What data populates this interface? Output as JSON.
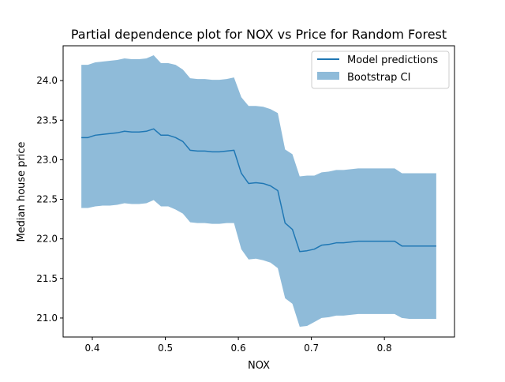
{
  "chart_data": {
    "type": "line",
    "title": "Partial dependence plot for NOX vs Price for Random Forest",
    "xlabel": "NOX",
    "ylabel": "Median house price",
    "xlim": [
      0.36,
      0.896
    ],
    "ylim": [
      20.76,
      24.44
    ],
    "x_ticks": [
      0.4,
      0.5,
      0.6,
      0.7,
      0.8
    ],
    "x_tick_labels": [
      "0.4",
      "0.5",
      "0.6",
      "0.7",
      "0.8"
    ],
    "y_ticks": [
      21.0,
      21.5,
      22.0,
      22.5,
      23.0,
      23.5,
      24.0
    ],
    "y_tick_labels": [
      "21.0",
      "21.5",
      "22.0",
      "22.5",
      "23.0",
      "23.5",
      "24.0"
    ],
    "grid": false,
    "legend_position": "upper right",
    "colors": {
      "line": "#1f77b4",
      "band": "#1f77b4",
      "band_alpha": 0.5
    },
    "x": [
      0.385,
      0.394,
      0.404,
      0.414,
      0.424,
      0.434,
      0.444,
      0.454,
      0.464,
      0.474,
      0.484,
      0.494,
      0.504,
      0.514,
      0.524,
      0.534,
      0.544,
      0.554,
      0.564,
      0.574,
      0.584,
      0.594,
      0.604,
      0.614,
      0.624,
      0.634,
      0.644,
      0.654,
      0.664,
      0.674,
      0.684,
      0.694,
      0.704,
      0.714,
      0.724,
      0.734,
      0.744,
      0.754,
      0.764,
      0.774,
      0.784,
      0.794,
      0.804,
      0.814,
      0.824,
      0.834,
      0.844,
      0.854,
      0.864,
      0.871
    ],
    "series": [
      {
        "name": "Model predictions",
        "values": [
          23.28,
          23.28,
          23.31,
          23.32,
          23.33,
          23.34,
          23.36,
          23.35,
          23.35,
          23.36,
          23.39,
          23.31,
          23.31,
          23.28,
          23.23,
          23.12,
          23.11,
          23.11,
          23.1,
          23.1,
          23.11,
          23.12,
          22.83,
          22.7,
          22.71,
          22.7,
          22.67,
          22.61,
          22.2,
          22.12,
          21.84,
          21.85,
          21.87,
          21.92,
          21.93,
          21.95,
          21.95,
          21.96,
          21.97,
          21.97,
          21.97,
          21.97,
          21.97,
          21.97,
          21.91,
          21.91,
          21.91,
          21.91,
          21.91,
          21.91
        ]
      },
      {
        "name": "Bootstrap CI",
        "lower": [
          22.39,
          22.39,
          22.41,
          22.42,
          22.42,
          22.43,
          22.45,
          22.44,
          22.44,
          22.45,
          22.49,
          22.41,
          22.41,
          22.37,
          22.32,
          22.21,
          22.2,
          22.2,
          22.19,
          22.19,
          22.2,
          22.2,
          21.87,
          21.74,
          21.75,
          21.73,
          21.7,
          21.63,
          21.25,
          21.18,
          20.89,
          20.9,
          20.95,
          21.0,
          21.01,
          21.03,
          21.03,
          21.04,
          21.05,
          21.05,
          21.05,
          21.05,
          21.05,
          21.05,
          21.0,
          20.99,
          20.99,
          20.99,
          20.99,
          20.99
        ],
        "upper": [
          24.2,
          24.2,
          24.23,
          24.24,
          24.25,
          24.26,
          24.28,
          24.27,
          24.27,
          24.28,
          24.32,
          24.22,
          24.22,
          24.2,
          24.14,
          24.03,
          24.02,
          24.02,
          24.01,
          24.01,
          24.02,
          24.04,
          23.79,
          23.68,
          23.68,
          23.67,
          23.64,
          23.59,
          23.13,
          23.07,
          22.79,
          22.8,
          22.8,
          22.84,
          22.85,
          22.87,
          22.87,
          22.88,
          22.89,
          22.89,
          22.89,
          22.89,
          22.89,
          22.89,
          22.83,
          22.83,
          22.83,
          22.83,
          22.83,
          22.83
        ]
      }
    ],
    "legend": [
      "Model predictions",
      "Bootstrap CI"
    ]
  }
}
